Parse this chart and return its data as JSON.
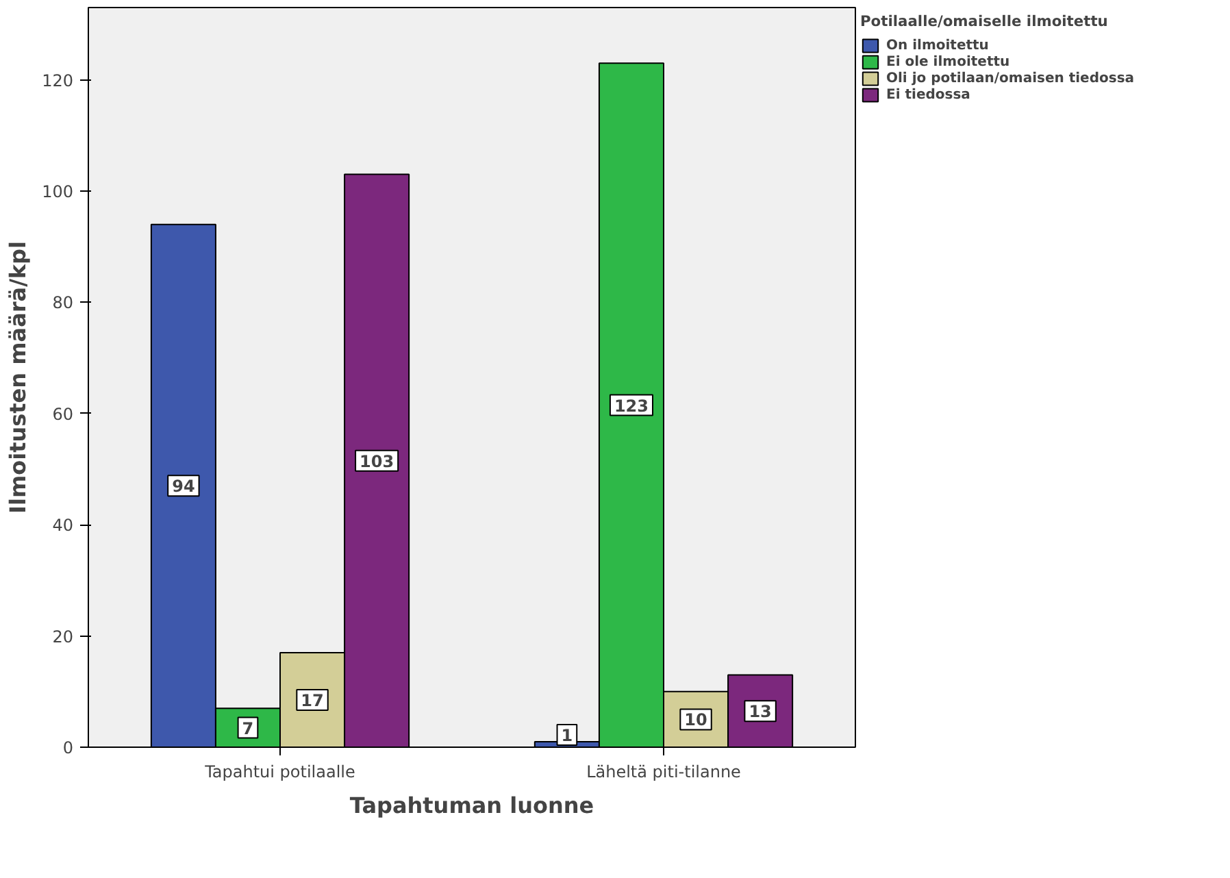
{
  "chart_data": {
    "type": "bar",
    "xlabel": "Tapahtuman luonne",
    "ylabel": "Ilmoitusten määrä/kpl",
    "legend_title": "Potilaalle/omaiselle ilmoitettu",
    "categories": [
      "Tapahtui potilaalle",
      "Läheltä piti-tilanne"
    ],
    "series": [
      {
        "name": "On ilmoitettu",
        "color": "#3e58ac",
        "values": [
          94,
          1
        ]
      },
      {
        "name": "Ei ole ilmoitettu",
        "color": "#2eb848",
        "values": [
          7,
          123
        ]
      },
      {
        "name": "Oli jo potilaan/omaisen tiedossa",
        "color": "#d3ce97",
        "values": [
          17,
          10
        ]
      },
      {
        "name": "Ei tiedossa",
        "color": "#7c287d",
        "values": [
          103,
          13
        ]
      }
    ],
    "ylim": [
      0,
      133
    ],
    "yticks": [
      0,
      20,
      40,
      60,
      80,
      100,
      120
    ],
    "grid": false,
    "legend": "right",
    "data_labels": true
  }
}
